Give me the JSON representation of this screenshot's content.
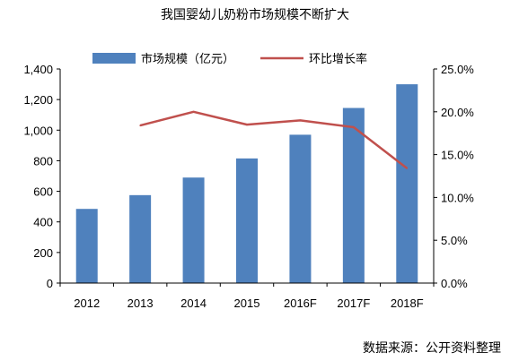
{
  "source_note": "数据来源：公开资料整理",
  "chart_data": {
    "type": "bar",
    "title": "我国婴幼儿奶粉市场规模不断扩大",
    "categories": [
      "2012",
      "2013",
      "2014",
      "2015",
      "2016F",
      "2017F",
      "2018F"
    ],
    "series": [
      {
        "name": "市场规模（亿元）",
        "type": "bar",
        "axis": "left",
        "color": "#4F81BD",
        "values": [
          485,
          575,
          690,
          815,
          970,
          1145,
          1300
        ]
      },
      {
        "name": "环比增长率",
        "type": "line",
        "axis": "right",
        "color": "#C0504D",
        "values": [
          null,
          18.4,
          20.0,
          18.5,
          19.0,
          18.2,
          13.4
        ]
      }
    ],
    "y_left": {
      "min": 0,
      "max": 1400,
      "step": 200,
      "ticks": [
        "0",
        "200",
        "400",
        "600",
        "800",
        "1,000",
        "1,200",
        "1,400"
      ]
    },
    "y_right": {
      "min": 0,
      "max": 25,
      "step": 5,
      "ticks": [
        "0.0%",
        "5.0%",
        "10.0%",
        "15.0%",
        "20.0%",
        "25.0%"
      ]
    },
    "grid": false,
    "legend_position": "top"
  }
}
